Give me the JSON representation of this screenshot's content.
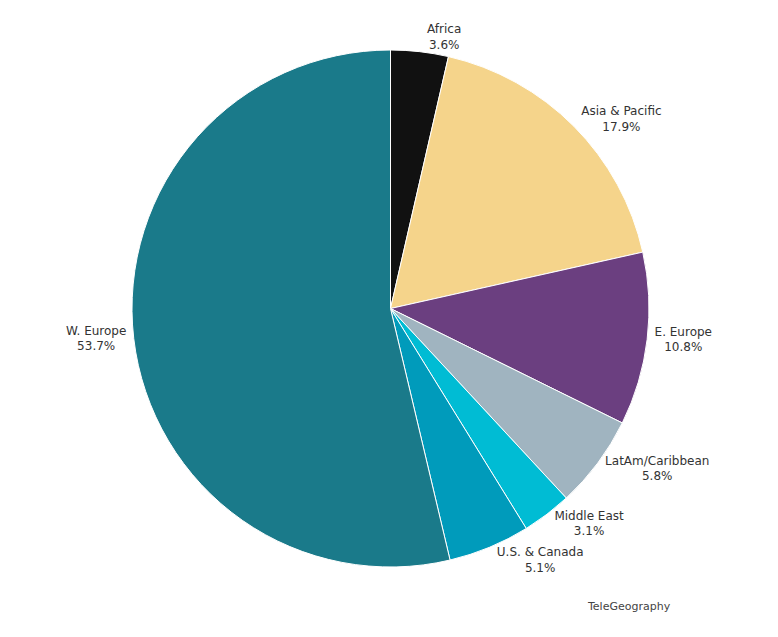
{
  "chart_data": {
    "type": "pie",
    "categories": [
      "Africa",
      "Asia & Pacific",
      "E. Europe",
      "LatAm/Caribbean",
      "Middle East",
      "U.S. & Canada",
      "W. Europe"
    ],
    "values": [
      3.6,
      17.9,
      10.8,
      5.8,
      3.1,
      5.1,
      53.7
    ],
    "value_labels": [
      "3.6%",
      "17.9%",
      "10.8%",
      "5.8%",
      "3.1%",
      "5.1%",
      "53.7%"
    ],
    "colors": [
      "#111111",
      "#f5d48b",
      "#6b3f80",
      "#a0b4c0",
      "#00bcd4",
      "#009bbb",
      "#1a7a8a"
    ],
    "data_labels": true,
    "annotations": [
      "TeleGeography"
    ]
  }
}
